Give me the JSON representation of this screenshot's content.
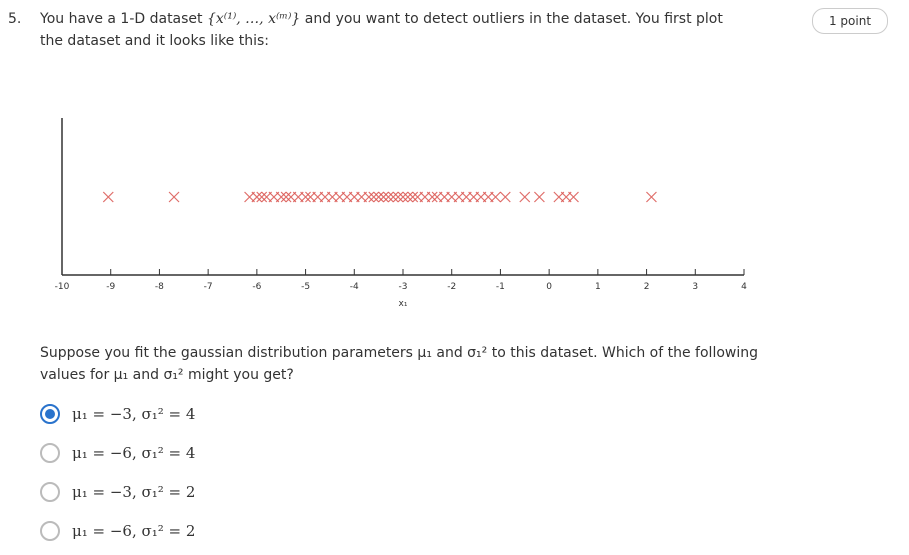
{
  "question": {
    "number": "5.",
    "points": "1 point",
    "intro_before": "You have a 1-D dataset ",
    "intro_math": "{x⁽¹⁾, …, x⁽ᵐ⁾}",
    "intro_after": " and you want to detect outliers in the dataset. You first plot the dataset and it looks like this:",
    "prompt": "Suppose you fit the gaussian distribution parameters μ₁ and σ₁² to this dataset. Which of the following values for μ₁ and σ₁² might you get?",
    "options": [
      {
        "label": "μ₁ = −3, σ₁² = 4",
        "selected": true
      },
      {
        "label": "μ₁ = −6, σ₁² = 4",
        "selected": false
      },
      {
        "label": "μ₁ = −3, σ₁² = 2",
        "selected": false
      },
      {
        "label": "μ₁ = −6, σ₁² = 2",
        "selected": false
      }
    ]
  },
  "chart_data": {
    "type": "strip",
    "xlabel": "x₁",
    "color": "#d9534f",
    "x": [
      -9.05,
      -7.7,
      -6.15,
      -6.0,
      -5.9,
      -5.8,
      -5.65,
      -5.5,
      -5.4,
      -5.3,
      -5.15,
      -5.0,
      -4.9,
      -4.75,
      -4.6,
      -4.45,
      -4.3,
      -4.15,
      -4.0,
      -3.85,
      -3.7,
      -3.6,
      -3.5,
      -3.4,
      -3.3,
      -3.2,
      -3.1,
      -3.0,
      -2.9,
      -2.8,
      -2.7,
      -2.55,
      -2.4,
      -2.3,
      -2.15,
      -2.0,
      -1.85,
      -1.7,
      -1.55,
      -1.4,
      -1.25,
      -1.1,
      -0.9,
      -0.5,
      -0.2,
      0.2,
      0.35,
      0.5,
      2.1
    ],
    "xlim": [
      -10,
      4
    ],
    "xticks": [
      -10,
      -9,
      -8,
      -7,
      -6,
      -5,
      -4,
      -3,
      -2,
      -1,
      0,
      1,
      2,
      3,
      4
    ]
  }
}
